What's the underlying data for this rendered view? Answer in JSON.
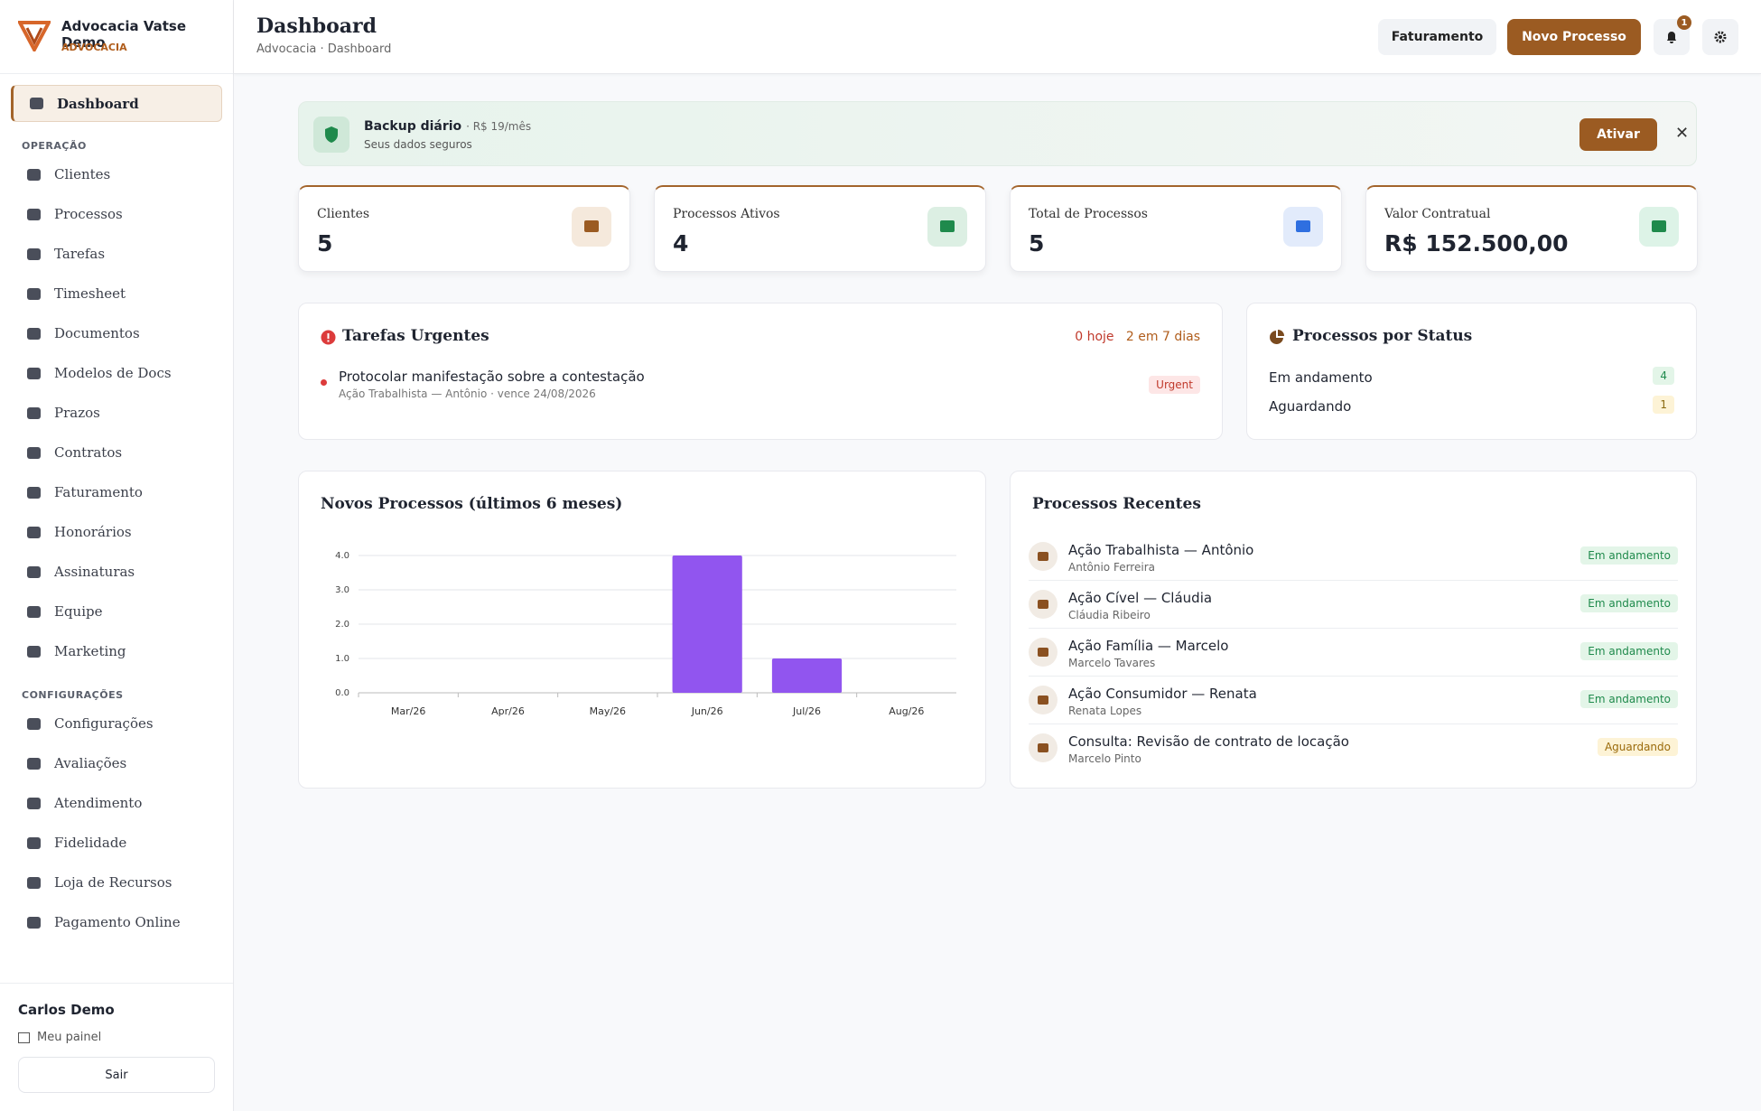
{
  "brand": {
    "name": "Advocacia Vatse Demo",
    "subtitle": "ADVOCACIA"
  },
  "sidebar": {
    "items": [
      "Dashboard"
    ],
    "sections": [
      {
        "title": "OPERAÇÃO",
        "items": [
          "Clientes",
          "Processos",
          "Tarefas",
          "Timesheet",
          "Documentos",
          "Modelos de Docs",
          "Prazos",
          "Contratos",
          "Faturamento",
          "Honorários",
          "Assinaturas",
          "Equipe",
          "Marketing"
        ]
      },
      {
        "title": "CONFIGURAÇÕES",
        "items": [
          "Configurações",
          "Avaliações",
          "Atendimento",
          "Fidelidade",
          "Loja de Recursos",
          "Pagamento Online"
        ]
      }
    ],
    "user": "Carlos Demo",
    "panel": "Meu painel",
    "logout": "Sair"
  },
  "header": {
    "title": "Dashboard",
    "breadcrumb": "Advocacia · Dashboard",
    "billing": "Faturamento",
    "new_process": "Novo Processo",
    "notifications": 1
  },
  "banner": {
    "title": "Backup diário",
    "price": "· R$ 19/mês",
    "subtitle": "Seus dados seguros",
    "action": "Ativar"
  },
  "stats": [
    {
      "label": "Clientes",
      "value": 5
    },
    {
      "label": "Processos Ativos",
      "value": 4
    },
    {
      "label": "Total de Processos",
      "value": 5
    },
    {
      "label": "Valor Contratual",
      "value": "R$ 152.500,00"
    }
  ],
  "urgent": {
    "title": "Tarefas Urgentes",
    "today": "0 hoje",
    "week": "2 em 7 dias",
    "tasks": [
      {
        "title": "Protocolar manifestação sobre a contestação",
        "meta": "Ação Trabalhista — Antônio · vence 24/08/2026",
        "tag": "Urgent"
      }
    ]
  },
  "status": {
    "title": "Processos por Status",
    "rows": [
      {
        "label": "Em andamento",
        "count": 4
      },
      {
        "label": "Aguardando",
        "count": 1
      }
    ]
  },
  "chart_data": {
    "type": "bar",
    "title": "Novos Processos (últimos 6 meses)",
    "categories": [
      "Mar/26",
      "Apr/26",
      "May/26",
      "Jun/26",
      "Jul/26",
      "Aug/26"
    ],
    "values": [
      0,
      0,
      0,
      4,
      1,
      0
    ],
    "color": "#9155ef",
    "ylim": [
      0,
      4
    ],
    "yticks": [
      {
        "value": 0,
        "label": "0.0"
      },
      {
        "value": 1,
        "label": "1.0"
      },
      {
        "value": 2,
        "label": "2.0"
      },
      {
        "value": 3,
        "label": "3.0"
      },
      {
        "value": 4,
        "label": "4.0"
      }
    ],
    "grid": true
  },
  "recent": {
    "title": "Processos Recentes",
    "items": [
      {
        "title": "Ação Trabalhista — Antônio",
        "client": "Antônio Ferreira",
        "status": "Em andamento"
      },
      {
        "title": "Ação Cível — Cláudia",
        "client": "Cláudia Ribeiro",
        "status": "Em andamento"
      },
      {
        "title": "Ação Família — Marcelo",
        "client": "Marcelo Tavares",
        "status": "Em andamento"
      },
      {
        "title": "Ação Consumidor — Renata",
        "client": "Renata Lopes",
        "status": "Em andamento"
      },
      {
        "title": "Consulta: Revisão de contrato de locação",
        "client": "Marcelo Pinto",
        "status": "Aguardando"
      }
    ]
  }
}
